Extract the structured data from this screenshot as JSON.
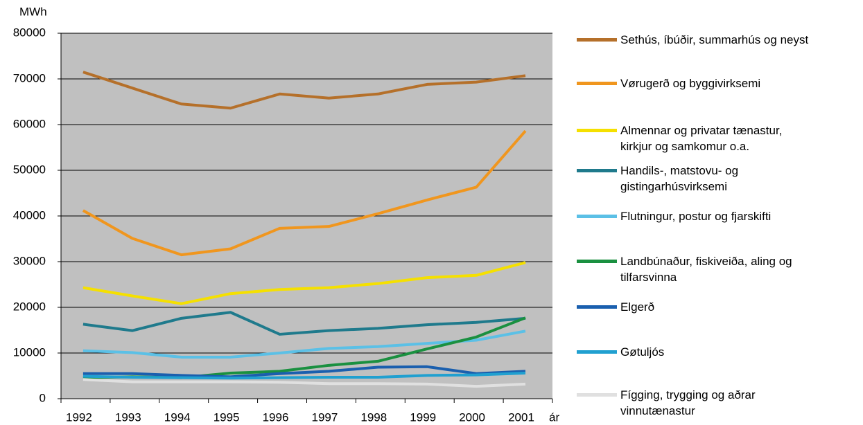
{
  "chart_data": {
    "type": "line",
    "y_label": "MWh",
    "x_label": "ár",
    "categories": [
      "1992",
      "1993",
      "1994",
      "1995",
      "1996",
      "1997",
      "1998",
      "1999",
      "2000",
      "2001"
    ],
    "ylim": [
      0,
      80000
    ],
    "yticks": [
      0,
      10000,
      20000,
      30000,
      40000,
      50000,
      60000,
      70000,
      80000
    ],
    "grid": true,
    "series": [
      {
        "name": "Sethús, íbúðir, summarhús og neyst",
        "color": "#b5702a",
        "values": [
          71500,
          68000,
          64500,
          63600,
          66700,
          65800,
          66700,
          68800,
          69300,
          70700
        ]
      },
      {
        "name": "Vørugerð og byggivirksemi",
        "color": "#f0961e",
        "values": [
          41200,
          35100,
          31500,
          32800,
          37300,
          37700,
          40500,
          43500,
          46300,
          58600
        ]
      },
      {
        "name": "Almennar og privatar tænastur,\nkirkjur og samkomur o.a.",
        "color": "#f5e000",
        "values": [
          24300,
          22500,
          20800,
          23000,
          23900,
          24300,
          25200,
          26500,
          27000,
          29800
        ]
      },
      {
        "name": "Handils-, matstovu- og\ngistingarhúsvirksemi",
        "color": "#1f7a8c",
        "values": [
          16300,
          14900,
          17600,
          18900,
          14100,
          14900,
          15400,
          16200,
          16700,
          17600
        ]
      },
      {
        "name": "Flutningur, postur og fjarskifti",
        "color": "#5bc0e6",
        "values": [
          10500,
          10100,
          9100,
          9100,
          10000,
          11000,
          11400,
          12100,
          12800,
          14800
        ]
      },
      {
        "name": "Landbúnaður, fiskiveiða, aling og\ntilfarsvinna",
        "color": "#1a9040",
        "values": [
          4600,
          4800,
          4600,
          5600,
          6000,
          7300,
          8200,
          10900,
          13500,
          17700
        ]
      },
      {
        "name": "Elgerð",
        "color": "#1a5fae",
        "values": [
          5500,
          5500,
          5100,
          4800,
          5500,
          6000,
          6900,
          7000,
          5500,
          6000
        ]
      },
      {
        "name": "Gøtuljós",
        "color": "#20a0d0",
        "values": [
          4900,
          4700,
          4600,
          4500,
          4600,
          4700,
          4700,
          5100,
          5200,
          5600
        ]
      },
      {
        "name": "Fígging, trygging og aðrar\nvinnutænastur",
        "color": "#e0e0e0",
        "values": [
          4200,
          3700,
          3700,
          3700,
          3600,
          3300,
          3300,
          3200,
          2700,
          3200
        ]
      }
    ]
  }
}
